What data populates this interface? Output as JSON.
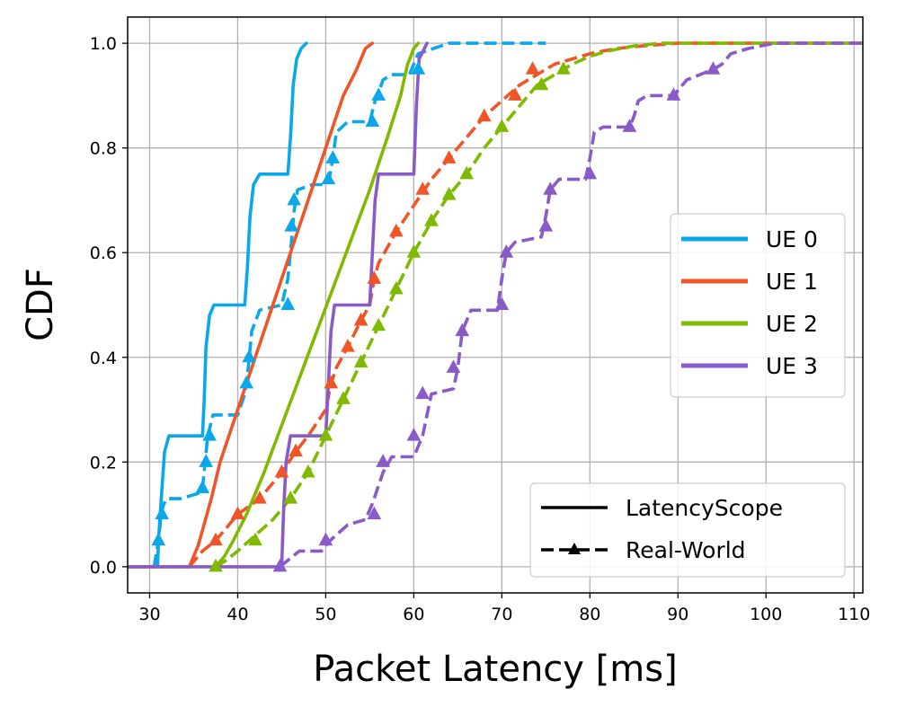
{
  "chart_data": {
    "type": "line",
    "title": "",
    "xlabel": "Packet Latency [ms]",
    "ylabel": "CDF",
    "xlim": [
      27.5,
      111
    ],
    "ylim": [
      -0.05,
      1.05
    ],
    "xticks": [
      30,
      40,
      50,
      60,
      70,
      80,
      90,
      100,
      110
    ],
    "yticks": [
      0.0,
      0.2,
      0.4,
      0.6,
      0.8,
      1.0
    ],
    "xtick_labels": [
      "30",
      "40",
      "50",
      "60",
      "70",
      "80",
      "90",
      "100",
      "110"
    ],
    "ytick_labels": [
      "0.0",
      "0.2",
      "0.4",
      "0.6",
      "0.8",
      "1.0"
    ],
    "grid": true,
    "series_legend": {
      "placement": "center-right",
      "entries": [
        "UE 0",
        "UE 1",
        "UE 2",
        "UE 3"
      ]
    },
    "style_legend": {
      "placement": "lower-right",
      "entries": [
        "LatencyScope",
        "Real-World"
      ]
    },
    "series": [
      {
        "name": "UE 0",
        "color": "#0aa8ea",
        "style": "LatencyScope",
        "x": [
          27.5,
          30.9,
          31.0,
          31.4,
          31.7,
          32.2,
          36.0,
          36.2,
          36.4,
          36.8,
          37.3,
          40.8,
          41.1,
          41.4,
          41.8,
          42.5,
          45.7,
          46.0,
          46.3,
          46.7,
          47.2,
          47.8
        ],
        "y": [
          0,
          0,
          0.05,
          0.15,
          0.22,
          0.25,
          0.25,
          0.32,
          0.42,
          0.48,
          0.5,
          0.5,
          0.57,
          0.67,
          0.73,
          0.75,
          0.75,
          0.82,
          0.92,
          0.97,
          0.99,
          1.0
        ]
      },
      {
        "name": "UE 0",
        "color": "#0aa8ea",
        "style": "Real-World",
        "x": [
          30.5,
          31.0,
          31.3,
          31.6,
          32.0,
          33.5,
          35.5,
          36.0,
          36.3,
          36.6,
          37.2,
          40.0,
          40.8,
          41.2,
          41.6,
          42.5,
          45.0,
          45.7,
          46.1,
          46.4,
          46.8,
          48.5,
          50.0,
          50.4,
          50.8,
          51.2,
          52.5,
          55.0,
          55.6,
          56.1,
          56.5,
          57.5,
          59.5,
          60.5,
          64.0,
          75.0
        ],
        "y": [
          0,
          0.05,
          0.1,
          0.12,
          0.13,
          0.13,
          0.14,
          0.15,
          0.2,
          0.25,
          0.29,
          0.29,
          0.33,
          0.38,
          0.45,
          0.49,
          0.5,
          0.55,
          0.62,
          0.68,
          0.72,
          0.73,
          0.73,
          0.74,
          0.78,
          0.83,
          0.85,
          0.85,
          0.89,
          0.91,
          0.93,
          0.94,
          0.94,
          0.98,
          1.0,
          1.0
        ]
      },
      {
        "name": "UE 1",
        "color": "#f05527",
        "style": "LatencyScope",
        "x": [
          27.5,
          34.5,
          35.0,
          35.5,
          36.0,
          37.0,
          38.0,
          40.0,
          42.0,
          44.0,
          46.0,
          48.0,
          50.0,
          52.0,
          53.5,
          54.5,
          55.3
        ],
        "y": [
          0,
          0,
          0.02,
          0.04,
          0.07,
          0.13,
          0.2,
          0.3,
          0.4,
          0.5,
          0.6,
          0.7,
          0.8,
          0.9,
          0.95,
          0.99,
          1.0
        ],
        "line_only": true
      },
      {
        "name": "UE 1",
        "color": "#f05527",
        "style": "Real-World",
        "x": [
          34.5,
          36.0,
          37.5,
          40.0,
          42.5,
          45.0,
          45.8,
          46.6,
          48.0,
          50.0,
          50.6,
          51.2,
          52.5,
          54.0,
          55.0,
          55.5,
          56.0,
          58.0,
          60.0,
          62.0,
          64.0,
          66.0,
          68.0,
          70.0,
          72.0,
          74.0,
          76.0,
          78.0,
          80.0,
          83.0,
          86.0,
          90.0,
          95.0,
          100.0,
          105.0,
          111.0
        ],
        "y": [
          0,
          0.03,
          0.05,
          0.1,
          0.13,
          0.18,
          0.2,
          0.22,
          0.25,
          0.3,
          0.35,
          0.38,
          0.42,
          0.47,
          0.5,
          0.55,
          0.58,
          0.64,
          0.69,
          0.74,
          0.78,
          0.82,
          0.86,
          0.89,
          0.92,
          0.94,
          0.96,
          0.97,
          0.98,
          0.99,
          0.995,
          1.0,
          1.0,
          1.0,
          1.0,
          1.0
        ]
      },
      {
        "name": "UE 2",
        "color": "#7fba00",
        "style": "LatencyScope",
        "x": [
          37.5,
          38.5,
          39.5,
          41.0,
          43.0,
          45.0,
          47.0,
          49.0,
          51.0,
          53.0,
          55.0,
          57.0,
          58.5,
          59.3,
          60.0,
          60.5
        ],
        "y": [
          0,
          0.02,
          0.05,
          0.1,
          0.18,
          0.27,
          0.36,
          0.45,
          0.54,
          0.63,
          0.72,
          0.82,
          0.9,
          0.96,
          0.99,
          1.0
        ],
        "line_only": true
      },
      {
        "name": "UE 2",
        "color": "#7fba00",
        "style": "Real-World",
        "x": [
          37.5,
          38.5,
          40.0,
          42.0,
          44.0,
          46.0,
          48.0,
          50.0,
          52.0,
          54.0,
          56.0,
          58.0,
          60.0,
          62.0,
          64.0,
          66.0,
          68.0,
          70.0,
          72.0,
          74.0,
          76.0,
          78.0,
          80.0,
          82.0,
          85.0,
          88.0,
          92.0,
          96.0,
          100.0,
          104.0,
          111.0
        ],
        "y": [
          0,
          0.01,
          0.03,
          0.06,
          0.09,
          0.13,
          0.18,
          0.25,
          0.32,
          0.39,
          0.46,
          0.53,
          0.6,
          0.66,
          0.71,
          0.75,
          0.8,
          0.84,
          0.88,
          0.92,
          0.94,
          0.96,
          0.975,
          0.985,
          0.995,
          1.0,
          1.0,
          1.0,
          1.0,
          1.0,
          1.0
        ]
      },
      {
        "name": "UE 3",
        "color": "#8a5ac9",
        "style": "LatencyScope",
        "x": [
          27.5,
          45.0,
          45.2,
          45.5,
          46.0,
          50.0,
          50.3,
          50.6,
          51.0,
          55.0,
          55.3,
          55.6,
          56.0,
          60.0,
          60.3,
          60.6,
          61.5
        ],
        "y": [
          0,
          0,
          0.1,
          0.2,
          0.25,
          0.25,
          0.35,
          0.45,
          0.5,
          0.5,
          0.6,
          0.7,
          0.75,
          0.75,
          0.88,
          0.97,
          1.0
        ],
        "line_only": true
      },
      {
        "name": "UE 3",
        "color": "#8a5ac9",
        "style": "Real-World",
        "x": [
          44.8,
          47.0,
          49.5,
          50.5,
          52.5,
          54.5,
          55.3,
          56.5,
          57.5,
          60.0,
          61.0,
          62.0,
          64.5,
          65.0,
          65.5,
          66.5,
          69.5,
          70.0,
          70.5,
          71.5,
          74.5,
          75.0,
          75.5,
          76.5,
          79.5,
          80.0,
          80.5,
          81.5,
          84.5,
          85.0,
          85.5,
          86.5,
          89.5,
          91.0,
          94.0,
          95.0,
          96.0,
          98.0,
          101.0,
          105.0,
          111.0
        ],
        "y": [
          0,
          0.03,
          0.03,
          0.05,
          0.08,
          0.09,
          0.12,
          0.18,
          0.21,
          0.21,
          0.25,
          0.33,
          0.34,
          0.38,
          0.45,
          0.49,
          0.49,
          0.55,
          0.6,
          0.62,
          0.63,
          0.67,
          0.72,
          0.74,
          0.74,
          0.78,
          0.83,
          0.84,
          0.84,
          0.86,
          0.89,
          0.9,
          0.9,
          0.93,
          0.95,
          0.96,
          0.98,
          0.99,
          1.0,
          1.0,
          1.0
        ]
      }
    ],
    "markers": [
      {
        "name": "UE 0",
        "color": "#0aa8ea",
        "x": [
          31.0,
          31.4,
          36.0,
          36.4,
          36.8,
          41.0,
          41.3,
          45.7,
          46.1,
          46.4,
          50.3,
          50.8,
          55.3,
          56.0,
          60.5
        ],
        "y": [
          0.05,
          0.1,
          0.15,
          0.2,
          0.25,
          0.35,
          0.4,
          0.5,
          0.65,
          0.7,
          0.74,
          0.78,
          0.85,
          0.9,
          0.95
        ]
      },
      {
        "name": "UE 1",
        "color": "#f05527",
        "x": [
          37.5,
          40.0,
          42.5,
          45.0,
          46.6,
          50.6,
          52.5,
          54.0,
          55.5,
          58.0,
          61.0,
          64.0,
          68.0,
          71.5,
          73.5
        ],
        "y": [
          0.05,
          0.1,
          0.13,
          0.18,
          0.22,
          0.35,
          0.42,
          0.47,
          0.55,
          0.64,
          0.72,
          0.78,
          0.86,
          0.9,
          0.95
        ]
      },
      {
        "name": "UE 2",
        "color": "#7fba00",
        "x": [
          37.5,
          42.0,
          46.0,
          48.0,
          50.0,
          52.0,
          54.0,
          56.0,
          58.0,
          60.0,
          62.0,
          64.0,
          66.0,
          70.0,
          74.5,
          77.0
        ],
        "y": [
          0.0,
          0.05,
          0.13,
          0.18,
          0.25,
          0.32,
          0.39,
          0.46,
          0.53,
          0.6,
          0.66,
          0.71,
          0.75,
          0.84,
          0.92,
          0.95
        ]
      },
      {
        "name": "UE 3",
        "color": "#8a5ac9",
        "x": [
          44.8,
          50.0,
          55.5,
          56.5,
          60.0,
          61.0,
          64.5,
          65.5,
          70.0,
          70.5,
          75.0,
          75.5,
          80.0,
          84.5,
          89.5,
          94.0
        ],
        "y": [
          0.0,
          0.05,
          0.1,
          0.2,
          0.25,
          0.33,
          0.38,
          0.45,
          0.5,
          0.6,
          0.65,
          0.72,
          0.75,
          0.84,
          0.9,
          0.95
        ]
      }
    ]
  }
}
